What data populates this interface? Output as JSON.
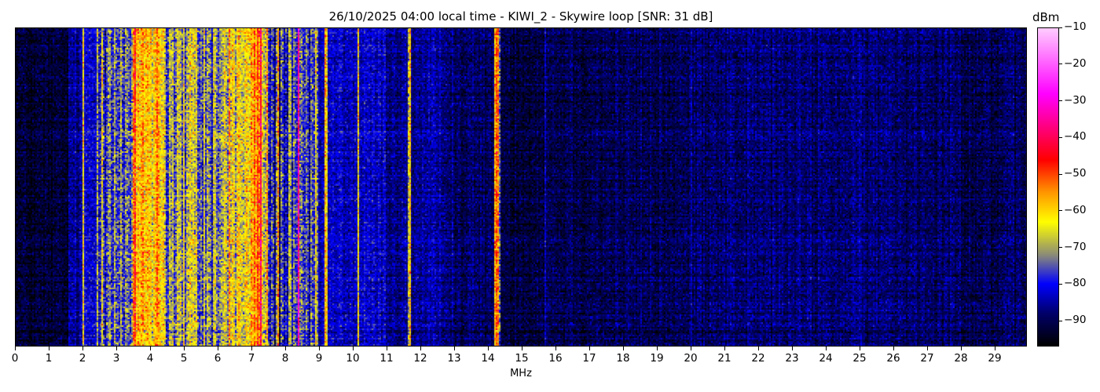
{
  "chart_data": {
    "type": "heatmap",
    "title": "26/10/2025 04:00 local time - KIWI_2 - Skywire loop [SNR: 31 dB]",
    "xlabel": "MHz",
    "ylabel": "",
    "xlim": [
      0,
      30
    ],
    "x_ticks": [
      "0",
      "1",
      "2",
      "3",
      "4",
      "5",
      "6",
      "7",
      "8",
      "9",
      "10",
      "11",
      "12",
      "13",
      "14",
      "15",
      "16",
      "17",
      "18",
      "19",
      "20",
      "21",
      "22",
      "23",
      "24",
      "25",
      "26",
      "27",
      "28",
      "29"
    ],
    "colorbar": {
      "label": "dBm",
      "range": [
        -97,
        -10
      ],
      "ticks": [
        "−10",
        "−20",
        "−30",
        "−40",
        "−50",
        "−60",
        "−70",
        "−80",
        "−90"
      ],
      "tick_values": [
        -10,
        -20,
        -30,
        -40,
        -50,
        -60,
        -70,
        -80,
        -90
      ],
      "colormap": [
        {
          "value": -97,
          "color": "#000000"
        },
        {
          "value": -88,
          "color": "#00006a"
        },
        {
          "value": -80,
          "color": "#0000ff"
        },
        {
          "value": -72,
          "color": "#8c8c78"
        },
        {
          "value": -63,
          "color": "#ffff00"
        },
        {
          "value": -55,
          "color": "#ff9900"
        },
        {
          "value": -46,
          "color": "#ff0000"
        },
        {
          "value": -28,
          "color": "#ff00ff"
        },
        {
          "value": -10,
          "color": "#ffccff"
        }
      ]
    },
    "bands_mhz_dbm": [
      {
        "from": 0,
        "to": 1.6,
        "level": -93
      },
      {
        "from": 1.6,
        "to": 2.0,
        "level": -86
      },
      {
        "from": 2.0,
        "to": 2.06,
        "level": -62
      },
      {
        "from": 2.06,
        "to": 2.4,
        "level": -82
      },
      {
        "from": 2.4,
        "to": 3.0,
        "level": -70
      },
      {
        "from": 3.0,
        "to": 3.5,
        "level": -76
      },
      {
        "from": 3.5,
        "to": 4.4,
        "level": -58
      },
      {
        "from": 4.4,
        "to": 5.5,
        "level": -71
      },
      {
        "from": 5.5,
        "to": 6.2,
        "level": -72
      },
      {
        "from": 6.2,
        "to": 7.5,
        "level": -64
      },
      {
        "from": 7.05,
        "to": 7.3,
        "level": -50
      },
      {
        "from": 7.5,
        "to": 9.0,
        "level": -79
      },
      {
        "from": 7.75,
        "to": 7.82,
        "level": -62
      },
      {
        "from": 8.35,
        "to": 8.43,
        "level": -46
      },
      {
        "from": 9.0,
        "to": 11.0,
        "level": -83
      },
      {
        "from": 9.18,
        "to": 9.24,
        "level": -64
      },
      {
        "from": 10.12,
        "to": 10.2,
        "level": -60
      },
      {
        "from": 11.0,
        "to": 13.0,
        "level": -86
      },
      {
        "from": 11.65,
        "to": 11.72,
        "level": -64
      },
      {
        "from": 13.0,
        "to": 14.2,
        "level": -89
      },
      {
        "from": 14.2,
        "to": 14.36,
        "level": -62
      },
      {
        "from": 14.36,
        "to": 15.7,
        "level": -91
      },
      {
        "from": 15.68,
        "to": 15.74,
        "level": -80
      },
      {
        "from": 15.74,
        "to": 20,
        "level": -90
      },
      {
        "from": 20,
        "to": 28,
        "level": -88
      },
      {
        "from": 28,
        "to": 30,
        "level": -90
      }
    ]
  }
}
